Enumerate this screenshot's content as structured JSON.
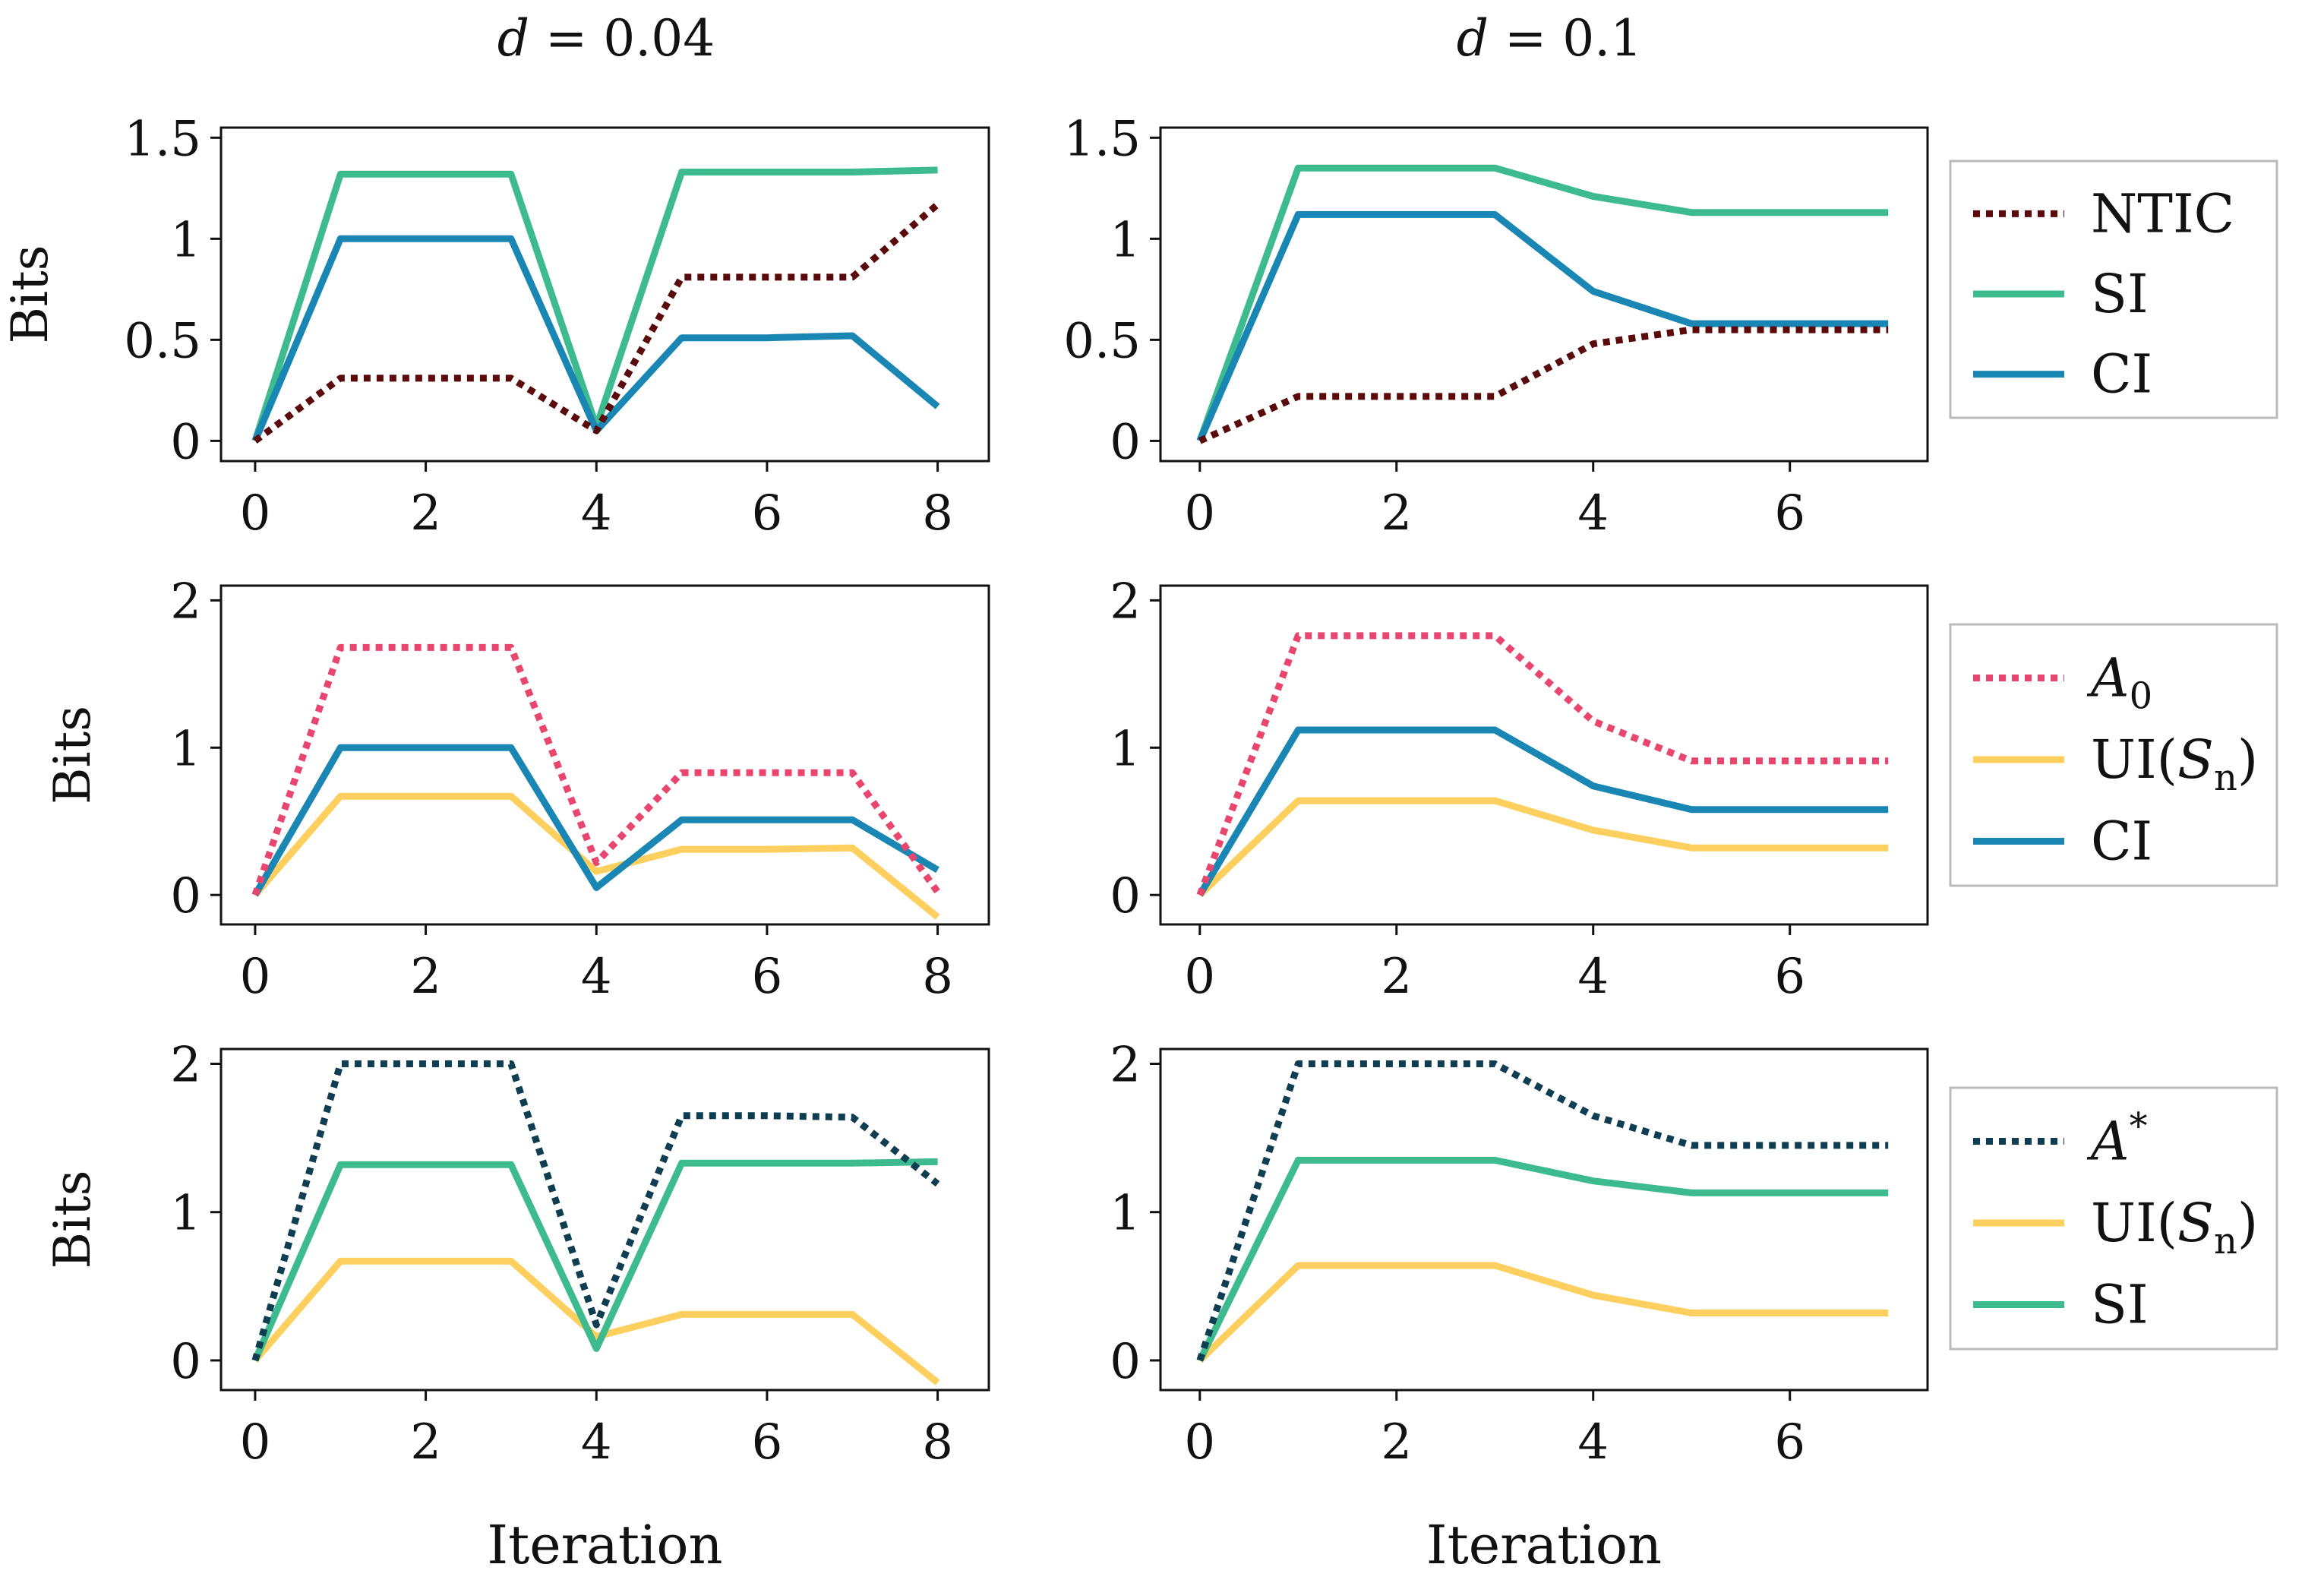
{
  "figure": {
    "col_titles": [
      {
        "var": "d",
        "rest": " = 0.04"
      },
      {
        "var": "d",
        "rest": " = 0.1"
      }
    ],
    "xlabel": "Iteration",
    "ylabel": "Bits"
  },
  "legends": [
    {
      "items": [
        {
          "label": "NTIC",
          "color": "#5a0a0a",
          "dashed": true
        },
        {
          "label": "SI",
          "color": "#3dbb8f",
          "dashed": false
        },
        {
          "label": "CI",
          "color": "#1a86b3",
          "dashed": false
        }
      ]
    },
    {
      "items": [
        {
          "label": "A",
          "sub": "0",
          "italic": true,
          "color": "#e8466e",
          "dashed": true
        },
        {
          "label": "UI(",
          "var": "S",
          "sub": "n",
          "tail": ")",
          "color": "#fdcf5f",
          "dashed": false
        },
        {
          "label": "CI",
          "color": "#1a86b3",
          "dashed": false
        }
      ]
    },
    {
      "items": [
        {
          "label": "A",
          "sup": "*",
          "italic": true,
          "color": "#0f3d52",
          "dashed": true
        },
        {
          "label": "UI(",
          "var": "S",
          "sub": "n",
          "tail": ")",
          "color": "#fdcf5f",
          "dashed": false
        },
        {
          "label": "SI",
          "color": "#3dbb8f",
          "dashed": false
        }
      ]
    }
  ],
  "chart_data": [
    {
      "type": "line",
      "xlabel": "",
      "ylabel": "Bits",
      "ylim": [
        -0.1,
        1.55
      ],
      "yticks": [
        0,
        0.5,
        1,
        1.5
      ],
      "ytick_labels": [
        "0",
        "0.5",
        "1",
        "1.5"
      ],
      "xlim": [
        -0.4,
        8.6
      ],
      "xticks": [
        0,
        2,
        4,
        6,
        8
      ],
      "x": [
        0,
        1,
        2,
        3,
        4,
        5,
        6,
        7,
        8
      ],
      "series": [
        {
          "name": "SI",
          "color": "#3dbb8f",
          "dashed": false,
          "values": [
            0,
            1.32,
            1.32,
            1.32,
            0.07,
            1.33,
            1.33,
            1.33,
            1.34
          ]
        },
        {
          "name": "CI",
          "color": "#1a86b3",
          "dashed": false,
          "values": [
            0,
            1.0,
            1.0,
            1.0,
            0.05,
            0.51,
            0.51,
            0.52,
            0.17
          ]
        },
        {
          "name": "NTIC",
          "color": "#5a0a0a",
          "dashed": true,
          "values": [
            0,
            0.31,
            0.31,
            0.31,
            0.05,
            0.81,
            0.81,
            0.81,
            1.17
          ]
        }
      ]
    },
    {
      "type": "line",
      "xlabel": "",
      "ylabel": "",
      "ylim": [
        -0.1,
        1.55
      ],
      "yticks": [
        0,
        0.5,
        1,
        1.5
      ],
      "ytick_labels": [
        "0",
        "0.5",
        "1",
        "1.5"
      ],
      "xlim": [
        -0.4,
        7.4
      ],
      "xticks": [
        0,
        2,
        4,
        6
      ],
      "x": [
        0,
        1,
        2,
        3,
        4,
        5,
        6,
        7
      ],
      "series": [
        {
          "name": "SI",
          "color": "#3dbb8f",
          "dashed": false,
          "values": [
            0,
            1.35,
            1.35,
            1.35,
            1.21,
            1.13,
            1.13,
            1.13
          ]
        },
        {
          "name": "CI",
          "color": "#1a86b3",
          "dashed": false,
          "values": [
            0,
            1.12,
            1.12,
            1.12,
            0.74,
            0.58,
            0.58,
            0.58
          ]
        },
        {
          "name": "NTIC",
          "color": "#5a0a0a",
          "dashed": true,
          "values": [
            0,
            0.22,
            0.22,
            0.22,
            0.48,
            0.55,
            0.55,
            0.55
          ]
        }
      ]
    },
    {
      "type": "line",
      "xlabel": "",
      "ylabel": "Bits",
      "ylim": [
        -0.2,
        2.1
      ],
      "yticks": [
        0,
        1,
        2
      ],
      "ytick_labels": [
        "0",
        "1",
        "2"
      ],
      "xlim": [
        -0.4,
        8.6
      ],
      "xticks": [
        0,
        2,
        4,
        6,
        8
      ],
      "x": [
        0,
        1,
        2,
        3,
        4,
        5,
        6,
        7,
        8
      ],
      "series": [
        {
          "name": "UI(Sn)",
          "color": "#fdcf5f",
          "dashed": false,
          "values": [
            0,
            0.67,
            0.67,
            0.67,
            0.16,
            0.31,
            0.31,
            0.32,
            -0.15
          ]
        },
        {
          "name": "CI",
          "color": "#1a86b3",
          "dashed": false,
          "values": [
            0,
            1.0,
            1.0,
            1.0,
            0.05,
            0.51,
            0.51,
            0.51,
            0.17
          ]
        },
        {
          "name": "A0",
          "color": "#e8466e",
          "dashed": true,
          "values": [
            0,
            1.68,
            1.68,
            1.68,
            0.22,
            0.83,
            0.83,
            0.83,
            0.02
          ]
        }
      ]
    },
    {
      "type": "line",
      "xlabel": "",
      "ylabel": "",
      "ylim": [
        -0.2,
        2.1
      ],
      "yticks": [
        0,
        1,
        2
      ],
      "ytick_labels": [
        "0",
        "1",
        "2"
      ],
      "xlim": [
        -0.4,
        7.4
      ],
      "xticks": [
        0,
        2,
        4,
        6
      ],
      "x": [
        0,
        1,
        2,
        3,
        4,
        5,
        6,
        7
      ],
      "series": [
        {
          "name": "UI(Sn)",
          "color": "#fdcf5f",
          "dashed": false,
          "values": [
            0,
            0.64,
            0.64,
            0.64,
            0.44,
            0.32,
            0.32,
            0.32
          ]
        },
        {
          "name": "CI",
          "color": "#1a86b3",
          "dashed": false,
          "values": [
            0,
            1.12,
            1.12,
            1.12,
            0.74,
            0.58,
            0.58,
            0.58
          ]
        },
        {
          "name": "A0",
          "color": "#e8466e",
          "dashed": true,
          "values": [
            0,
            1.76,
            1.76,
            1.76,
            1.18,
            0.91,
            0.91,
            0.91
          ]
        }
      ]
    },
    {
      "type": "line",
      "xlabel": "Iteration",
      "ylabel": "Bits",
      "ylim": [
        -0.2,
        2.1
      ],
      "yticks": [
        0,
        1,
        2
      ],
      "ytick_labels": [
        "0",
        "1",
        "2"
      ],
      "xlim": [
        -0.4,
        8.6
      ],
      "xticks": [
        0,
        2,
        4,
        6,
        8
      ],
      "x": [
        0,
        1,
        2,
        3,
        4,
        5,
        6,
        7,
        8
      ],
      "series": [
        {
          "name": "UI(Sn)",
          "color": "#fdcf5f",
          "dashed": false,
          "values": [
            0,
            0.67,
            0.67,
            0.67,
            0.16,
            0.31,
            0.31,
            0.31,
            -0.15
          ]
        },
        {
          "name": "SI",
          "color": "#3dbb8f",
          "dashed": false,
          "values": [
            0,
            1.32,
            1.32,
            1.32,
            0.08,
            1.33,
            1.33,
            1.33,
            1.34
          ]
        },
        {
          "name": "A*",
          "color": "#0f3d52",
          "dashed": true,
          "values": [
            0,
            2.0,
            2.0,
            2.0,
            0.24,
            1.65,
            1.65,
            1.64,
            1.19
          ]
        }
      ]
    },
    {
      "type": "line",
      "xlabel": "Iteration",
      "ylabel": "",
      "ylim": [
        -0.2,
        2.1
      ],
      "yticks": [
        0,
        1,
        2
      ],
      "ytick_labels": [
        "0",
        "1",
        "2"
      ],
      "xlim": [
        -0.4,
        7.4
      ],
      "xticks": [
        0,
        2,
        4,
        6
      ],
      "x": [
        0,
        1,
        2,
        3,
        4,
        5,
        6,
        7
      ],
      "series": [
        {
          "name": "UI(Sn)",
          "color": "#fdcf5f",
          "dashed": false,
          "values": [
            0,
            0.64,
            0.64,
            0.64,
            0.44,
            0.32,
            0.32,
            0.32
          ]
        },
        {
          "name": "SI",
          "color": "#3dbb8f",
          "dashed": false,
          "values": [
            0,
            1.35,
            1.35,
            1.35,
            1.21,
            1.13,
            1.13,
            1.13
          ]
        },
        {
          "name": "A*",
          "color": "#0f3d52",
          "dashed": true,
          "values": [
            0,
            2.0,
            2.0,
            2.0,
            1.65,
            1.45,
            1.45,
            1.45
          ]
        }
      ]
    }
  ]
}
